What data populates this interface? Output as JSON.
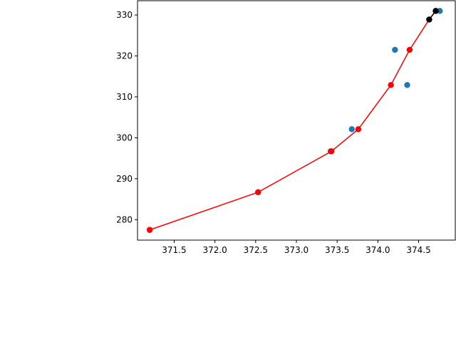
{
  "chart_data": {
    "type": "scatter",
    "title": "",
    "xlabel": "",
    "ylabel": "",
    "xlim": [
      371.05,
      374.95
    ],
    "ylim": [
      275.0,
      333.5
    ],
    "xticks": [
      "371.5",
      "372.0",
      "372.5",
      "373.0",
      "373.5",
      "374.0",
      "374.5"
    ],
    "yticks": [
      "280",
      "290",
      "300",
      "310",
      "320",
      "330"
    ],
    "grid": false,
    "legend": "none",
    "series": [
      {
        "kind": "scatter",
        "color": "#1f77b4",
        "x": [
          371.2,
          372.53,
          373.42,
          373.68,
          374.21,
          374.36,
          374.76
        ],
        "y": [
          277.5,
          286.7,
          296.7,
          302.1,
          321.5,
          312.9,
          331.0
        ]
      },
      {
        "kind": "line-markers",
        "color": "#ff0000",
        "x": [
          371.2,
          372.53,
          373.43,
          373.76,
          374.16,
          374.39,
          374.63,
          374.71
        ],
        "y": [
          277.5,
          286.7,
          296.7,
          302.1,
          312.9,
          321.5,
          328.9,
          331.0
        ]
      },
      {
        "kind": "line-markers",
        "color": "#000000",
        "x": [
          374.63,
          374.71
        ],
        "y": [
          328.9,
          331.0
        ]
      }
    ]
  }
}
